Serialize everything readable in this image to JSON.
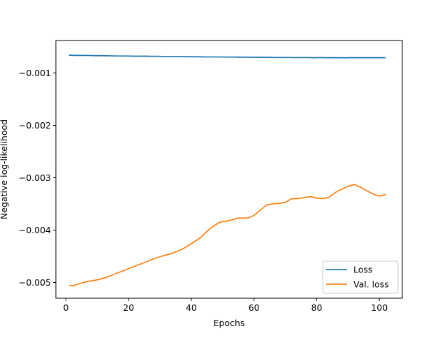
{
  "chart_data": {
    "type": "line",
    "title": "",
    "xlabel": "Epochs",
    "ylabel": "Negative log-likelihood",
    "xlim": [
      -3.2,
      107.3
    ],
    "ylim": [
      -0.0053,
      -0.00038
    ],
    "x_ticks": [
      0,
      20,
      40,
      60,
      80,
      100
    ],
    "x_tick_labels": [
      "0",
      "20",
      "40",
      "60",
      "80",
      "100"
    ],
    "y_ticks": [
      -0.005,
      -0.004,
      -0.003,
      -0.002,
      -0.001
    ],
    "y_tick_labels": [
      "−0.005",
      "−0.004",
      "−0.003",
      "−0.002",
      "−0.001"
    ],
    "grid": false,
    "legend_position": "lower-right",
    "series": [
      {
        "name": "Loss",
        "color": "#1f77b4",
        "x": [
          1,
          3,
          5,
          7,
          9,
          11,
          13,
          15,
          17,
          19,
          21,
          23,
          25,
          27,
          29,
          31,
          33,
          35,
          37,
          39,
          41,
          43,
          45,
          47,
          49,
          51,
          53,
          55,
          57,
          59,
          61,
          63,
          65,
          67,
          69,
          71,
          73,
          75,
          77,
          79,
          81,
          83,
          85,
          87,
          89,
          91,
          93,
          95,
          97,
          99,
          101,
          102
        ],
        "values": [
          -0.00066,
          -0.000665,
          -0.000665,
          -0.000665,
          -0.00067,
          -0.00067,
          -0.000672,
          -0.000674,
          -0.000676,
          -0.000676,
          -0.000678,
          -0.00068,
          -0.000678,
          -0.000682,
          -0.000682,
          -0.000684,
          -0.000684,
          -0.000686,
          -0.000688,
          -0.00069,
          -0.00069,
          -0.000692,
          -0.000694,
          -0.000694,
          -0.000694,
          -0.000696,
          -0.000696,
          -0.000698,
          -0.000698,
          -0.0007,
          -0.0007,
          -0.000702,
          -0.000702,
          -0.000704,
          -0.000704,
          -0.000704,
          -0.000706,
          -0.000706,
          -0.000706,
          -0.000708,
          -0.000706,
          -0.000708,
          -0.000708,
          -0.000708,
          -0.00071,
          -0.000708,
          -0.000708,
          -0.000708,
          -0.000708,
          -0.000708,
          -0.000708,
          -0.000708
        ]
      },
      {
        "name": "Val. loss",
        "color": "#ff7f0e",
        "x": [
          1,
          2,
          3,
          5,
          7,
          10,
          13,
          16,
          19,
          22,
          25,
          28,
          31,
          34,
          37,
          40,
          43,
          46,
          49,
          52,
          55,
          58,
          60,
          62,
          64,
          66,
          68,
          70,
          72,
          74,
          76,
          78,
          80,
          82,
          84,
          86,
          88,
          90,
          92,
          94,
          96,
          98,
          100,
          102
        ],
        "values": [
          -0.00506,
          -0.00506,
          -0.00505,
          -0.00501,
          -0.00498,
          -0.00495,
          -0.0049,
          -0.00483,
          -0.00476,
          -0.00469,
          -0.00462,
          -0.00455,
          -0.00449,
          -0.00444,
          -0.00437,
          -0.00426,
          -0.00414,
          -0.00397,
          -0.00385,
          -0.00382,
          -0.00377,
          -0.00377,
          -0.00372,
          -0.00362,
          -0.00352,
          -0.0035,
          -0.00349,
          -0.00347,
          -0.0034,
          -0.0034,
          -0.00338,
          -0.00336,
          -0.00339,
          -0.0034,
          -0.00337,
          -0.00328,
          -0.00322,
          -0.00316,
          -0.00313,
          -0.00318,
          -0.00325,
          -0.00331,
          -0.00335,
          -0.00332
        ]
      }
    ]
  }
}
